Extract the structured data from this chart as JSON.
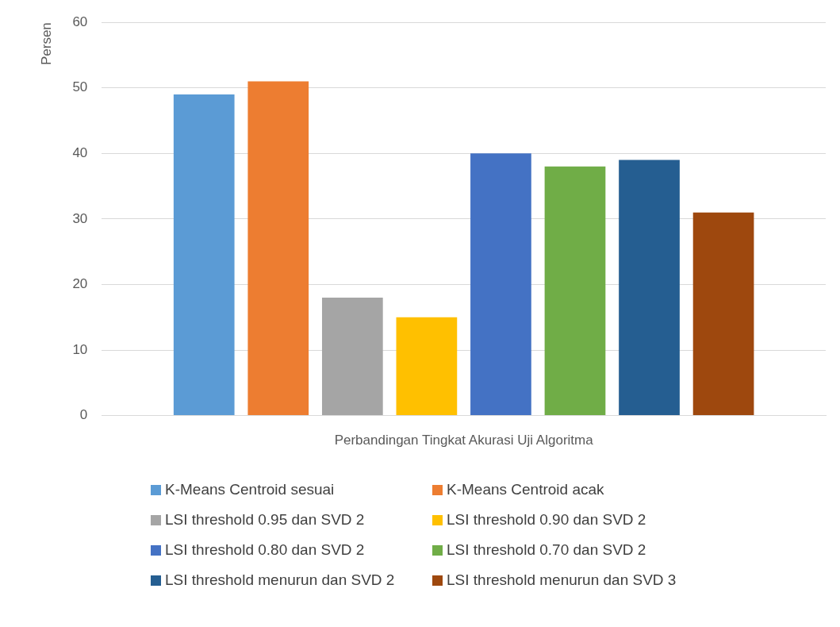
{
  "chart_data": {
    "type": "bar",
    "ylabel": "Persen",
    "categories": [
      "Perbandingan Tingkat Akurasi Uji Algoritma"
    ],
    "series": [
      {
        "name": "K-Means Centroid sesuai",
        "color": "#5b9bd5",
        "values": [
          49
        ]
      },
      {
        "name": "K-Means Centroid acak",
        "color": "#ed7d31",
        "values": [
          51
        ]
      },
      {
        "name": "LSI threshold 0.95 dan SVD 2",
        "color": "#a5a5a5",
        "values": [
          18
        ]
      },
      {
        "name": "LSI threshold 0.90 dan SVD 2",
        "color": "#ffc000",
        "values": [
          15
        ]
      },
      {
        "name": "LSI threshold 0.80 dan SVD 2",
        "color": "#4472c4",
        "values": [
          40
        ]
      },
      {
        "name": "LSI threshold 0.70 dan SVD 2",
        "color": "#70ad47",
        "values": [
          38
        ]
      },
      {
        "name": "LSI threshold menurun dan SVD 2",
        "color": "#255e91",
        "values": [
          39
        ]
      },
      {
        "name": "LSI threshold menurun dan SVD 3",
        "color": "#9e480e",
        "values": [
          31
        ]
      }
    ],
    "ylim": [
      0,
      60
    ],
    "yticks": [
      0,
      10,
      20,
      30,
      40,
      50,
      60
    ],
    "grid": "y",
    "legend": "bottom"
  }
}
